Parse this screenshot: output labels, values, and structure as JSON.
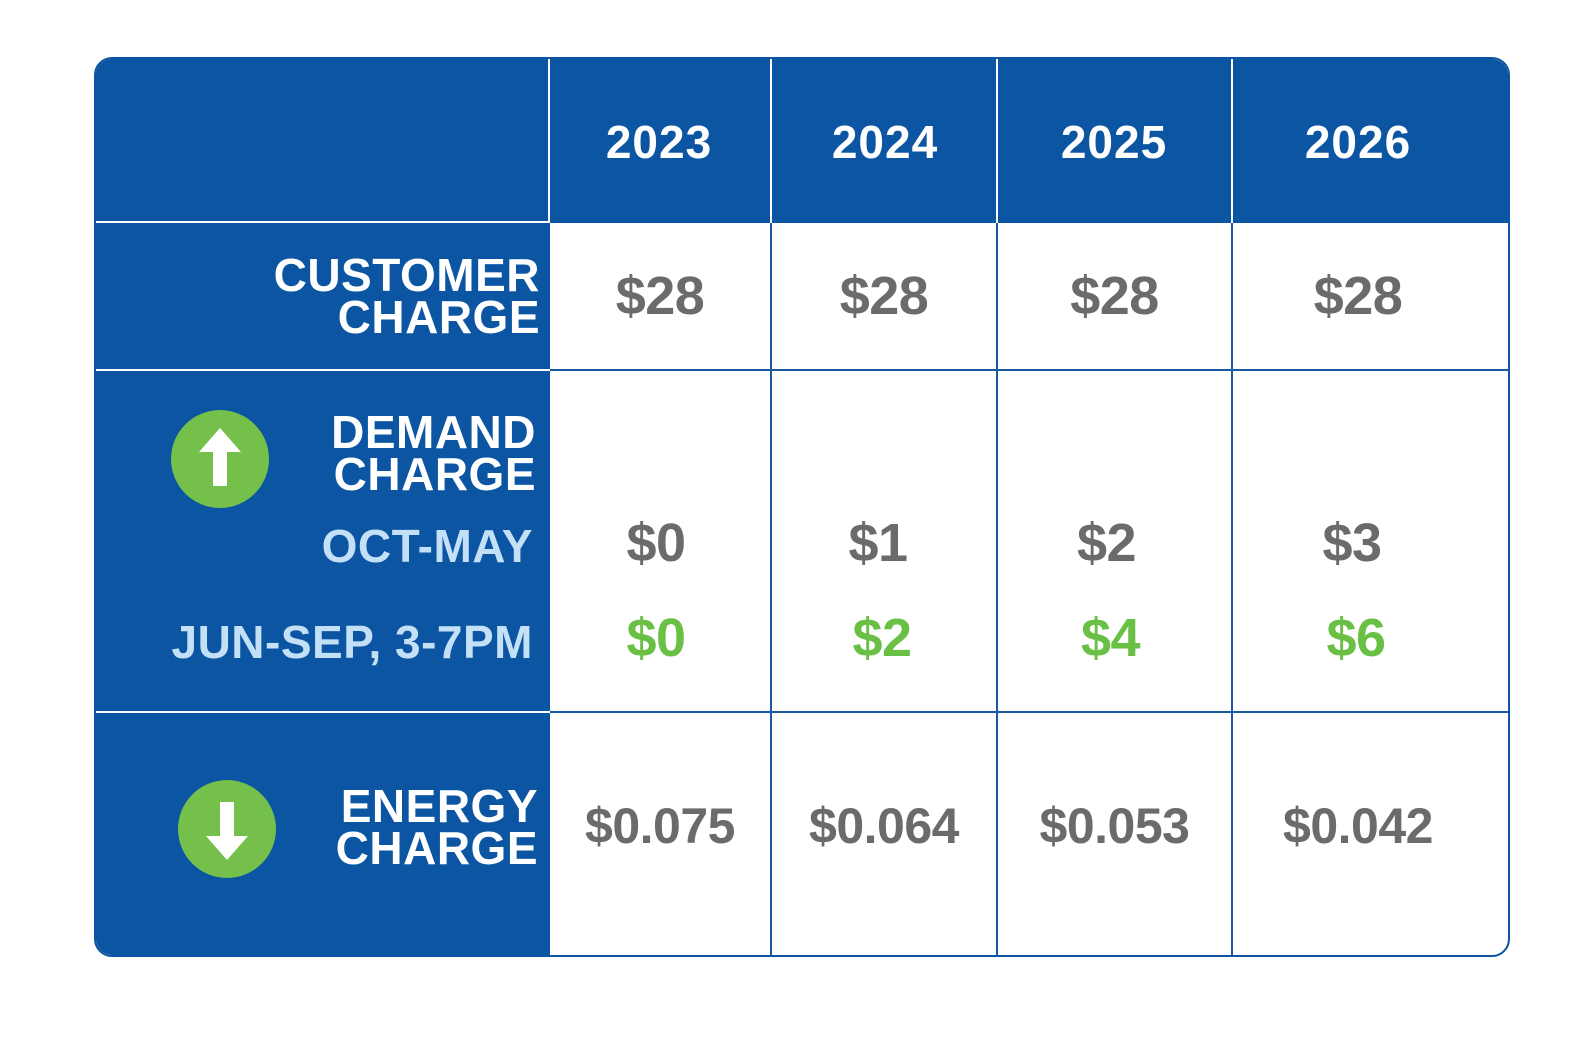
{
  "chart_data": {
    "type": "table",
    "columns": [
      "2023",
      "2024",
      "2025",
      "2026"
    ],
    "rows": [
      {
        "label": [
          "CUSTOMER",
          "CHARGE"
        ],
        "values": [
          "$28",
          "$28",
          "$28",
          "$28"
        ]
      },
      {
        "label": [
          "DEMAND",
          "CHARGE"
        ],
        "trend_icon": "arrow-up-icon",
        "subrows": [
          {
            "label": "OCT-MAY",
            "values": [
              "$0",
              "$1",
              "$2",
              "$3"
            ]
          },
          {
            "label": "JUN-SEP, 3-7PM",
            "values": [
              "$0",
              "$2",
              "$4",
              "$6"
            ]
          }
        ]
      },
      {
        "label": [
          "ENERGY",
          "CHARGE"
        ],
        "trend_icon": "arrow-down-icon",
        "values": [
          "$0.075",
          "$0.064",
          "$0.053",
          "$0.042"
        ]
      }
    ]
  },
  "colors": {
    "header_blue": "#0b55a3",
    "value_gray": "#6b6b6b",
    "value_green": "#6abf45",
    "icon_green": "#74c04a",
    "sublabel_light_blue": "#c4e0f6"
  }
}
